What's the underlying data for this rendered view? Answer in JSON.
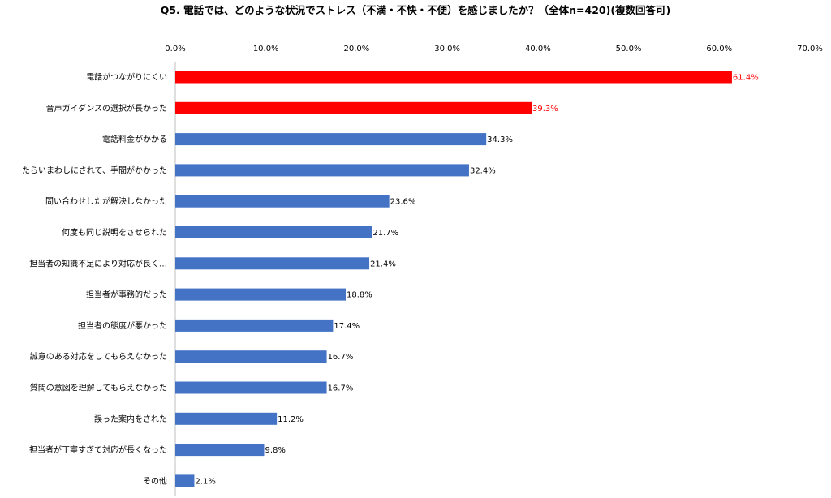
{
  "chart_data": {
    "type": "bar",
    "orientation": "horizontal",
    "title": "Q5. 電話では、どのような状況でストレス（不満・不快・不便）を感じましたか？（全体n=420)(複数回答可)",
    "xlabel": "",
    "ylabel": "",
    "xlim": [
      0,
      70
    ],
    "x_ticks": [
      "0.0%",
      "10.0%",
      "20.0%",
      "30.0%",
      "40.0%",
      "50.0%",
      "60.0%",
      "70.0%"
    ],
    "x_tick_values": [
      0,
      10,
      20,
      30,
      40,
      50,
      60,
      70
    ],
    "grid": false,
    "legend": "none",
    "categories": [
      "電話がつながりにくい",
      "音声ガイダンスの選択が長かった",
      "電話料金がかかる",
      "たらいまわしにされて、手間がかかった",
      "問い合わせしたが解決しなかった",
      "何度も同じ説明をさせられた",
      "担当者の知識不足により対応が長く…",
      "担当者が事務的だった",
      "担当者の態度が悪かった",
      "誠意のある対応をしてもらえなかった",
      "質問の意図を理解してもらえなかった",
      "誤った案内をされた",
      "担当者が丁寧すぎて対応が長くなった",
      "その他"
    ],
    "values": [
      61.4,
      39.3,
      34.3,
      32.4,
      23.6,
      21.7,
      21.4,
      18.8,
      17.4,
      16.7,
      16.7,
      11.2,
      9.8,
      2.1
    ],
    "data_labels": [
      "61.4%",
      "39.3%",
      "34.3%",
      "32.4%",
      "23.6%",
      "21.7%",
      "21.4%",
      "18.8%",
      "17.4%",
      "16.7%",
      "16.7%",
      "11.2%",
      "9.8%",
      "2.1%"
    ],
    "highlight_count": 2,
    "colors": {
      "highlight": "#ff0000",
      "default": "#4472c4",
      "highlight_label": "#ff0000",
      "default_label": "#000000",
      "axis": "#bfbfbf"
    }
  }
}
